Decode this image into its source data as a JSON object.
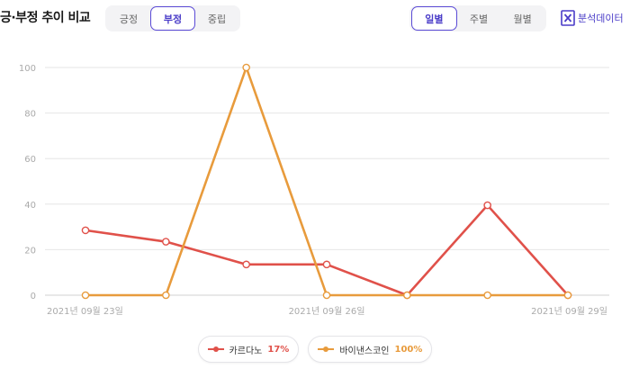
{
  "header": {
    "title": "긍·부정 추이 비교",
    "sentiment_tabs": [
      "긍정",
      "부정",
      "중립"
    ],
    "sentiment_active": 1,
    "period_tabs": [
      "일별",
      "주별",
      "월별"
    ],
    "period_active": 0,
    "export_label": "분석데이터",
    "export_icon": "excel-icon",
    "accent_color": "#4a3cc8"
  },
  "legend": [
    {
      "name": "카르다노",
      "pct": "17%",
      "color": "#e0514a"
    },
    {
      "name": "바이낸스코인",
      "pct": "100%",
      "color": "#e89b3c"
    }
  ],
  "chart_data": {
    "type": "line",
    "x": [
      "2021-09-23",
      "2021-09-24",
      "2021-09-25",
      "2021-09-26",
      "2021-09-27",
      "2021-09-28",
      "2021-09-29"
    ],
    "xtick_labels": [
      "2021년 09월 23일",
      "2021년 09월 26일",
      "2021년 09월 29일"
    ],
    "xtick_index": [
      0,
      3,
      6
    ],
    "yticks": [
      0,
      20,
      40,
      60,
      80,
      100
    ],
    "ylim": [
      0,
      100
    ],
    "grid": true,
    "legend_position": "bottom",
    "series": [
      {
        "name": "카르다노",
        "color": "#e0514a",
        "values": [
          28.5,
          23.5,
          13.5,
          13.5,
          0,
          39.5,
          0
        ]
      },
      {
        "name": "바이낸스코인",
        "color": "#e89b3c",
        "values": [
          0,
          0,
          100,
          0,
          0,
          0,
          0
        ]
      }
    ]
  }
}
